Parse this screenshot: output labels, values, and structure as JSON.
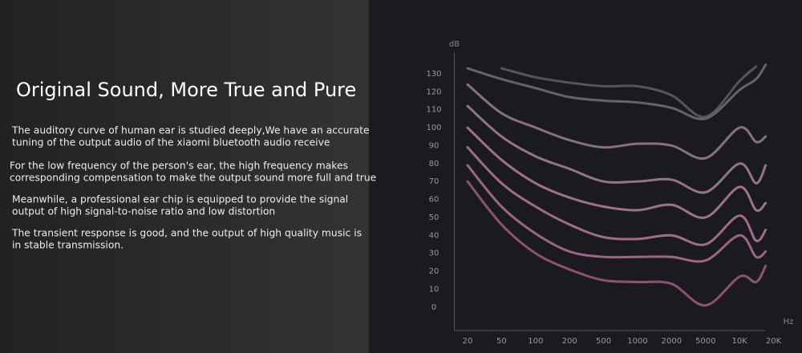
{
  "header": {
    "title": "Original Sound, More True and Pure"
  },
  "paragraphs": [
    [
      "The auditory curve of human ear is studied deeply,We have an accurate",
      "tuning of the output audio of the xiaomi bluetooth audio receive"
    ],
    [
      "For the low frequency of the person's ear, the high frequency makes",
      "corresponding compensation to make the output sound more full and true"
    ],
    [
      "Meanwhile, a professional ear chip is equipped to provide the signal",
      "output of high signal-to-noise ratio and low distortion"
    ],
    [
      "The transient response is good, and the output of high quality music is",
      "in stable transmission."
    ]
  ],
  "chart_data": {
    "type": "line",
    "y_label": "dB",
    "x_label": "Hz",
    "x": [
      20,
      50,
      100,
      200,
      500,
      1000,
      2000,
      5000,
      10000,
      14000,
      17000
    ],
    "series": [
      {
        "color": "#55555b",
        "values": [
          null,
          133,
          128,
          125,
          123,
          123,
          118,
          106,
          126,
          134,
          null
        ]
      },
      {
        "color": "#66626a",
        "values": [
          133,
          127,
          122,
          117,
          115,
          114,
          111,
          105,
          121,
          127,
          135
        ]
      },
      {
        "color": "#86727f",
        "values": [
          124,
          108,
          100,
          93,
          89,
          91,
          90,
          83,
          100,
          92,
          95
        ]
      },
      {
        "color": "#94748a",
        "values": [
          112,
          95,
          84,
          77,
          70,
          70,
          71,
          64,
          80,
          69,
          79
        ]
      },
      {
        "color": "#9c7290",
        "values": [
          100,
          82,
          69,
          61,
          56,
          54,
          57,
          50,
          67,
          54,
          58
        ]
      },
      {
        "color": "#9e6c8e",
        "values": [
          89,
          69,
          56,
          46,
          39,
          38,
          40,
          35,
          51,
          37,
          43
        ]
      },
      {
        "color": "#9a6588",
        "values": [
          79,
          56,
          41,
          31,
          28,
          28,
          28,
          26,
          40,
          28,
          31
        ]
      },
      {
        "color": "#8c5276",
        "values": [
          70,
          46,
          30,
          21,
          15,
          14,
          13,
          1,
          17,
          14,
          23
        ]
      }
    ],
    "xlim": [
      14,
      17000
    ],
    "xticks": [
      20,
      50,
      100,
      200,
      500,
      1000,
      2000,
      5000,
      {
        "value": 10000,
        "label": "10K"
      },
      {
        "value": 20000,
        "label": "20K"
      }
    ],
    "ylim": [
      -13,
      142
    ],
    "yticks": [
      0,
      10,
      20,
      30,
      40,
      50,
      60,
      70,
      80,
      90,
      100,
      110,
      120,
      130
    ]
  }
}
